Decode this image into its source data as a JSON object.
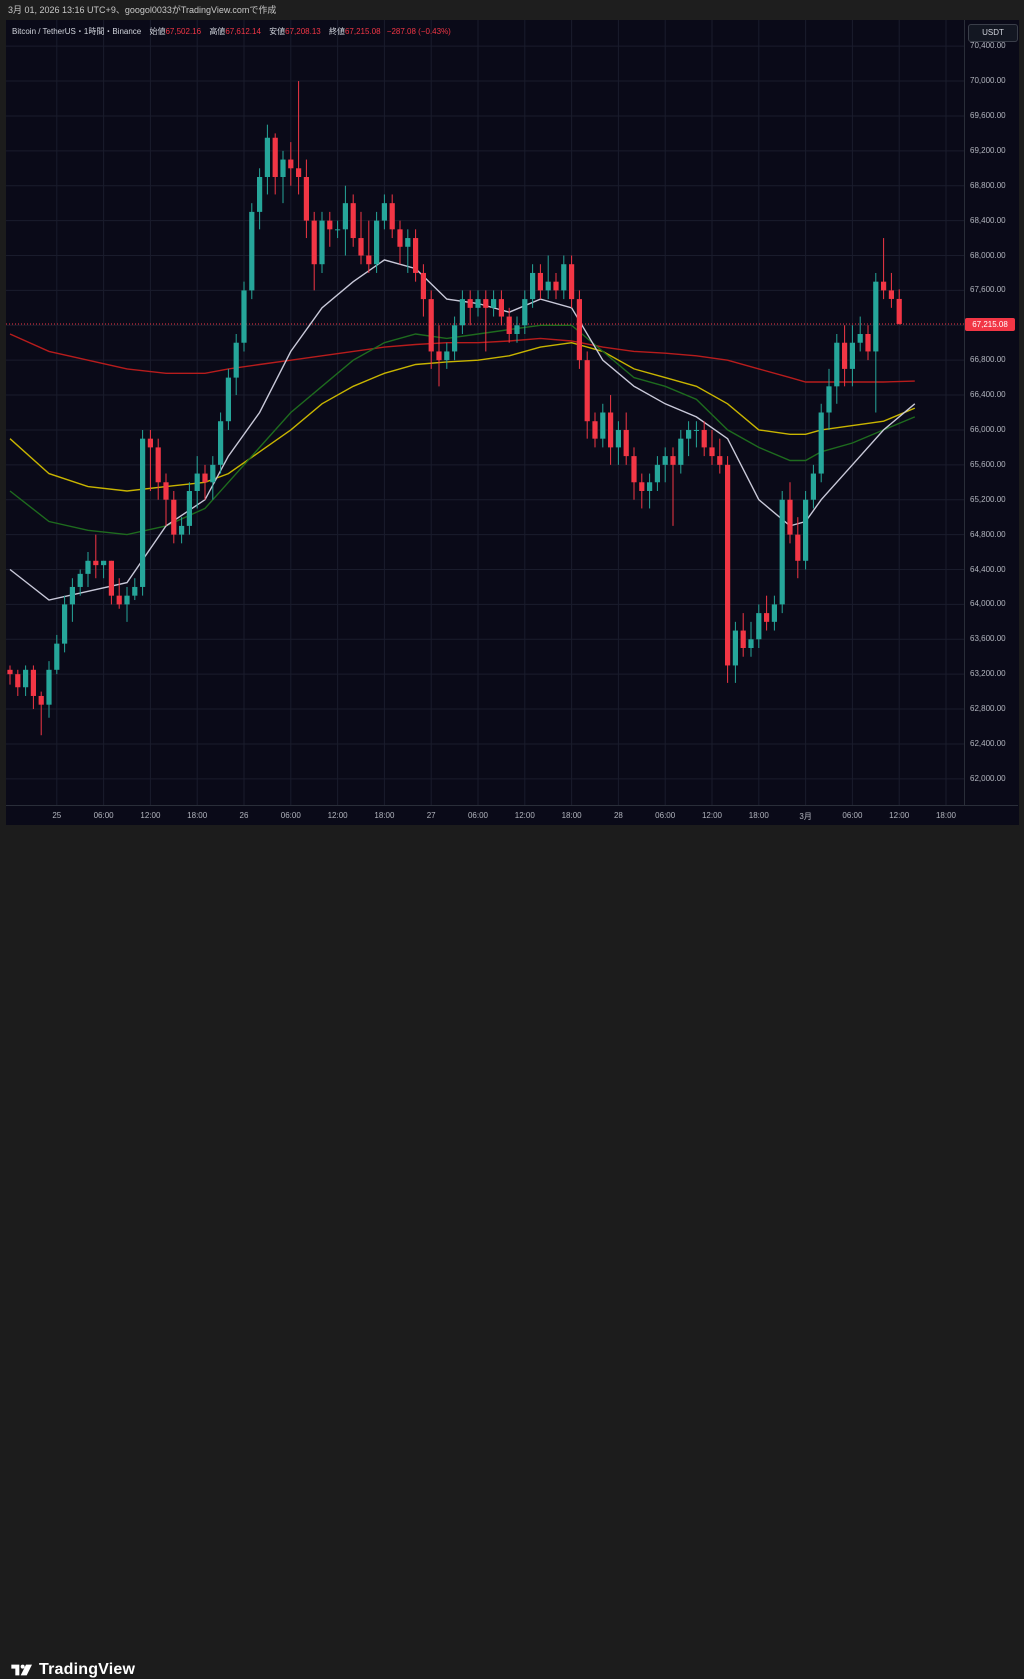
{
  "header": {
    "attribution": "3月 01, 2026 13:16 UTC+9、googol0033がTradingView.comで作成"
  },
  "legend": {
    "symbol": "Bitcoin / TetherUS・1時間・Binance",
    "open_label": "始値",
    "open_value": "67,502.16",
    "high_label": "高値",
    "high_value": "67,612.14",
    "low_label": "安値",
    "low_value": "67,208.13",
    "close_label": "終値",
    "close_value": "67,215.08",
    "change": "−287.08 (−0.43%)"
  },
  "currency_button": "USDT",
  "last_price_label": "67,215.08",
  "brand": {
    "name": "TradingView"
  },
  "colors": {
    "background": "#0a0a18",
    "up": "#26a69a",
    "down": "#f23645",
    "ma_fast": "#c9c9d9",
    "ma_mid": "#1e6b1e",
    "ma_slow_a": "#c8b400",
    "ma_slow_b": "#b71c1c"
  },
  "chart_data": {
    "type": "candlestick",
    "title": "Bitcoin / TetherUS・1時間・Binance",
    "ylim": [
      61700,
      70700
    ],
    "y_ticks": [
      "70,400.00",
      "70,000.00",
      "69,600.00",
      "69,200.00",
      "68,800.00",
      "68,400.00",
      "68,000.00",
      "67,600.00",
      "67,200.00",
      "66,800.00",
      "66,400.00",
      "66,000.00",
      "65,600.00",
      "65,200.00",
      "64,800.00",
      "64,400.00",
      "64,000.00",
      "63,600.00",
      "63,200.00",
      "62,800.00",
      "62,400.00",
      "62,000.00"
    ],
    "y_tick_values": [
      70400,
      70000,
      69600,
      69200,
      68800,
      68400,
      68000,
      67600,
      67200,
      66800,
      66400,
      66000,
      65600,
      65200,
      64800,
      64400,
      64000,
      63600,
      63200,
      62800,
      62400,
      62000
    ],
    "x_ticks": [
      {
        "label": "25",
        "i": 6
      },
      {
        "label": "06:00",
        "i": 12
      },
      {
        "label": "12:00",
        "i": 18
      },
      {
        "label": "18:00",
        "i": 24
      },
      {
        "label": "26",
        "i": 30
      },
      {
        "label": "06:00",
        "i": 36
      },
      {
        "label": "12:00",
        "i": 42
      },
      {
        "label": "18:00",
        "i": 48
      },
      {
        "label": "27",
        "i": 54
      },
      {
        "label": "06:00",
        "i": 60
      },
      {
        "label": "12:00",
        "i": 66
      },
      {
        "label": "18:00",
        "i": 72
      },
      {
        "label": "28",
        "i": 78
      },
      {
        "label": "06:00",
        "i": 84
      },
      {
        "label": "12:00",
        "i": 90
      },
      {
        "label": "18:00",
        "i": 96
      },
      {
        "label": "3月",
        "i": 102
      },
      {
        "label": "06:00",
        "i": 108
      },
      {
        "label": "12:00",
        "i": 114
      },
      {
        "label": "18:00",
        "i": 120
      }
    ],
    "candles": [
      [
        63250,
        63300,
        63080,
        63200
      ],
      [
        63200,
        63250,
        62950,
        63050
      ],
      [
        63050,
        63300,
        62950,
        63250
      ],
      [
        63250,
        63300,
        62800,
        62950
      ],
      [
        62950,
        63000,
        62500,
        62850
      ],
      [
        62850,
        63350,
        62700,
        63250
      ],
      [
        63250,
        63650,
        63200,
        63550
      ],
      [
        63550,
        64100,
        63450,
        64000
      ],
      [
        64000,
        64300,
        63800,
        64200
      ],
      [
        64200,
        64400,
        64100,
        64350
      ],
      [
        64350,
        64600,
        64200,
        64500
      ],
      [
        64500,
        64800,
        64300,
        64450
      ],
      [
        64450,
        64500,
        64300,
        64500
      ],
      [
        64500,
        64500,
        64000,
        64100
      ],
      [
        64100,
        64300,
        63950,
        64000
      ],
      [
        64000,
        64200,
        63800,
        64100
      ],
      [
        64100,
        64300,
        64050,
        64200
      ],
      [
        64200,
        66000,
        64100,
        65900
      ],
      [
        65900,
        66000,
        65300,
        65800
      ],
      [
        65800,
        65900,
        65200,
        65400
      ],
      [
        65400,
        65500,
        64900,
        65200
      ],
      [
        65200,
        65300,
        64700,
        64800
      ],
      [
        64800,
        65000,
        64700,
        64900
      ],
      [
        64900,
        65400,
        64800,
        65300
      ],
      [
        65300,
        65700,
        65100,
        65500
      ],
      [
        65500,
        65600,
        65200,
        65400
      ],
      [
        65400,
        65700,
        65200,
        65600
      ],
      [
        65600,
        66200,
        65500,
        66100
      ],
      [
        66100,
        66700,
        66000,
        66600
      ],
      [
        66600,
        67100,
        66400,
        67000
      ],
      [
        67000,
        67700,
        66900,
        67600
      ],
      [
        67600,
        68600,
        67500,
        68500
      ],
      [
        68500,
        69000,
        68300,
        68900
      ],
      [
        68900,
        69500,
        68700,
        69350
      ],
      [
        69350,
        69400,
        68700,
        68900
      ],
      [
        68900,
        69200,
        68600,
        69100
      ],
      [
        69100,
        69300,
        68800,
        69000
      ],
      [
        69000,
        70000,
        68700,
        68900
      ],
      [
        68900,
        69100,
        68200,
        68400
      ],
      [
        68400,
        68500,
        67600,
        67900
      ],
      [
        67900,
        68500,
        67800,
        68400
      ],
      [
        68400,
        68500,
        68100,
        68300
      ],
      [
        68300,
        68400,
        68200,
        68300
      ],
      [
        68300,
        68800,
        68000,
        68600
      ],
      [
        68600,
        68700,
        68100,
        68200
      ],
      [
        68200,
        68500,
        67900,
        68000
      ],
      [
        68000,
        68400,
        67800,
        67900
      ],
      [
        67900,
        68500,
        67800,
        68400
      ],
      [
        68400,
        68700,
        68300,
        68600
      ],
      [
        68600,
        68700,
        68200,
        68300
      ],
      [
        68300,
        68400,
        67900,
        68100
      ],
      [
        68100,
        68300,
        67800,
        68200
      ],
      [
        68200,
        68300,
        67700,
        67800
      ],
      [
        67800,
        67900,
        67300,
        67500
      ],
      [
        67500,
        67600,
        66700,
        66900
      ],
      [
        66900,
        67200,
        66500,
        66800
      ],
      [
        66800,
        67000,
        66700,
        66900
      ],
      [
        66900,
        67300,
        66800,
        67200
      ],
      [
        67200,
        67600,
        67100,
        67500
      ],
      [
        67500,
        67600,
        67200,
        67400
      ],
      [
        67400,
        67600,
        67300,
        67500
      ],
      [
        67500,
        67600,
        66900,
        67400
      ],
      [
        67400,
        67600,
        67300,
        67500
      ],
      [
        67500,
        67600,
        67200,
        67300
      ],
      [
        67300,
        67400,
        67000,
        67100
      ],
      [
        67100,
        67300,
        67000,
        67200
      ],
      [
        67200,
        67600,
        67100,
        67500
      ],
      [
        67500,
        67900,
        67400,
        67800
      ],
      [
        67800,
        67900,
        67500,
        67600
      ],
      [
        67600,
        68000,
        67500,
        67700
      ],
      [
        67700,
        67800,
        67500,
        67600
      ],
      [
        67600,
        68000,
        67500,
        67900
      ],
      [
        67900,
        68000,
        67400,
        67500
      ],
      [
        67500,
        67600,
        66700,
        66800
      ],
      [
        66800,
        66900,
        65900,
        66100
      ],
      [
        66100,
        66200,
        65800,
        65900
      ],
      [
        65900,
        66300,
        65800,
        66200
      ],
      [
        66200,
        66400,
        65600,
        65800
      ],
      [
        65800,
        66100,
        65600,
        66000
      ],
      [
        66000,
        66200,
        65600,
        65700
      ],
      [
        65700,
        65800,
        65200,
        65400
      ],
      [
        65400,
        65500,
        65100,
        65300
      ],
      [
        65300,
        65500,
        65100,
        65400
      ],
      [
        65400,
        65700,
        65300,
        65600
      ],
      [
        65600,
        65800,
        65400,
        65700
      ],
      [
        65700,
        65800,
        64900,
        65600
      ],
      [
        65600,
        66000,
        65500,
        65900
      ],
      [
        65900,
        66100,
        65700,
        66000
      ],
      [
        66000,
        66100,
        65800,
        66000
      ],
      [
        66000,
        66100,
        65700,
        65800
      ],
      [
        65800,
        66000,
        65600,
        65700
      ],
      [
        65700,
        65900,
        65500,
        65600
      ],
      [
        65600,
        65700,
        63100,
        63300
      ],
      [
        63300,
        63800,
        63100,
        63700
      ],
      [
        63700,
        63900,
        63400,
        63500
      ],
      [
        63500,
        63800,
        63400,
        63600
      ],
      [
        63600,
        64000,
        63500,
        63900
      ],
      [
        63900,
        64100,
        63700,
        63800
      ],
      [
        63800,
        64100,
        63700,
        64000
      ],
      [
        64000,
        65300,
        63900,
        65200
      ],
      [
        65200,
        65400,
        64700,
        64800
      ],
      [
        64800,
        65000,
        64300,
        64500
      ],
      [
        64500,
        65300,
        64400,
        65200
      ],
      [
        65200,
        65600,
        65100,
        65500
      ],
      [
        65500,
        66300,
        65400,
        66200
      ],
      [
        66200,
        66700,
        66000,
        66500
      ],
      [
        66500,
        67100,
        66300,
        67000
      ],
      [
        67000,
        67200,
        66500,
        66700
      ],
      [
        66700,
        67200,
        66500,
        67000
      ],
      [
        67000,
        67300,
        66900,
        67100
      ],
      [
        67100,
        67200,
        66800,
        66900
      ],
      [
        66900,
        67800,
        66200,
        67700
      ],
      [
        67700,
        68200,
        67500,
        67600
      ],
      [
        67600,
        67800,
        67400,
        67502
      ],
      [
        67502,
        67612,
        67208,
        67215
      ]
    ],
    "ma_fast": [
      [
        0,
        64400
      ],
      [
        5,
        64050
      ],
      [
        10,
        64150
      ],
      [
        15,
        64250
      ],
      [
        20,
        64900
      ],
      [
        25,
        65200
      ],
      [
        28,
        65700
      ],
      [
        32,
        66200
      ],
      [
        36,
        66900
      ],
      [
        40,
        67400
      ],
      [
        44,
        67700
      ],
      [
        48,
        67950
      ],
      [
        52,
        67850
      ],
      [
        56,
        67500
      ],
      [
        60,
        67450
      ],
      [
        64,
        67350
      ],
      [
        68,
        67500
      ],
      [
        72,
        67400
      ],
      [
        76,
        66800
      ],
      [
        80,
        66500
      ],
      [
        84,
        66300
      ],
      [
        88,
        66150
      ],
      [
        92,
        65900
      ],
      [
        96,
        65200
      ],
      [
        100,
        64900
      ],
      [
        102,
        64950
      ],
      [
        104,
        65200
      ],
      [
        108,
        65600
      ],
      [
        112,
        66000
      ],
      [
        116,
        66300
      ]
    ],
    "ma_mid": [
      [
        0,
        65300
      ],
      [
        5,
        64950
      ],
      [
        10,
        64850
      ],
      [
        15,
        64800
      ],
      [
        20,
        64900
      ],
      [
        25,
        65100
      ],
      [
        28,
        65400
      ],
      [
        32,
        65800
      ],
      [
        36,
        66200
      ],
      [
        40,
        66500
      ],
      [
        44,
        66800
      ],
      [
        48,
        67000
      ],
      [
        52,
        67100
      ],
      [
        56,
        67050
      ],
      [
        60,
        67100
      ],
      [
        64,
        67150
      ],
      [
        68,
        67200
      ],
      [
        72,
        67200
      ],
      [
        76,
        66900
      ],
      [
        80,
        66600
      ],
      [
        84,
        66500
      ],
      [
        88,
        66350
      ],
      [
        92,
        66000
      ],
      [
        96,
        65800
      ],
      [
        100,
        65650
      ],
      [
        102,
        65650
      ],
      [
        104,
        65750
      ],
      [
        108,
        65850
      ],
      [
        112,
        66000
      ],
      [
        116,
        66150
      ]
    ],
    "ma_slow_a": [
      [
        0,
        65900
      ],
      [
        5,
        65500
      ],
      [
        10,
        65350
      ],
      [
        15,
        65300
      ],
      [
        20,
        65350
      ],
      [
        25,
        65400
      ],
      [
        28,
        65500
      ],
      [
        32,
        65750
      ],
      [
        36,
        66000
      ],
      [
        40,
        66300
      ],
      [
        44,
        66500
      ],
      [
        48,
        66650
      ],
      [
        52,
        66750
      ],
      [
        56,
        66780
      ],
      [
        60,
        66800
      ],
      [
        64,
        66850
      ],
      [
        68,
        66950
      ],
      [
        72,
        67000
      ],
      [
        76,
        66900
      ],
      [
        80,
        66700
      ],
      [
        84,
        66600
      ],
      [
        88,
        66500
      ],
      [
        92,
        66300
      ],
      [
        96,
        66000
      ],
      [
        100,
        65950
      ],
      [
        102,
        65950
      ],
      [
        104,
        66000
      ],
      [
        108,
        66050
      ],
      [
        112,
        66100
      ],
      [
        116,
        66250
      ]
    ],
    "ma_slow_b": [
      [
        0,
        67100
      ],
      [
        5,
        66900
      ],
      [
        10,
        66800
      ],
      [
        15,
        66700
      ],
      [
        20,
        66650
      ],
      [
        25,
        66650
      ],
      [
        28,
        66700
      ],
      [
        32,
        66750
      ],
      [
        36,
        66800
      ],
      [
        40,
        66850
      ],
      [
        44,
        66900
      ],
      [
        48,
        66950
      ],
      [
        52,
        66980
      ],
      [
        56,
        67000
      ],
      [
        60,
        67000
      ],
      [
        64,
        67020
      ],
      [
        68,
        67050
      ],
      [
        72,
        67020
      ],
      [
        76,
        66950
      ],
      [
        80,
        66900
      ],
      [
        84,
        66880
      ],
      [
        88,
        66850
      ],
      [
        92,
        66800
      ],
      [
        96,
        66700
      ],
      [
        100,
        66600
      ],
      [
        102,
        66550
      ],
      [
        104,
        66550
      ],
      [
        108,
        66550
      ],
      [
        112,
        66550
      ],
      [
        116,
        66560
      ]
    ],
    "last_price": 67215.08
  }
}
